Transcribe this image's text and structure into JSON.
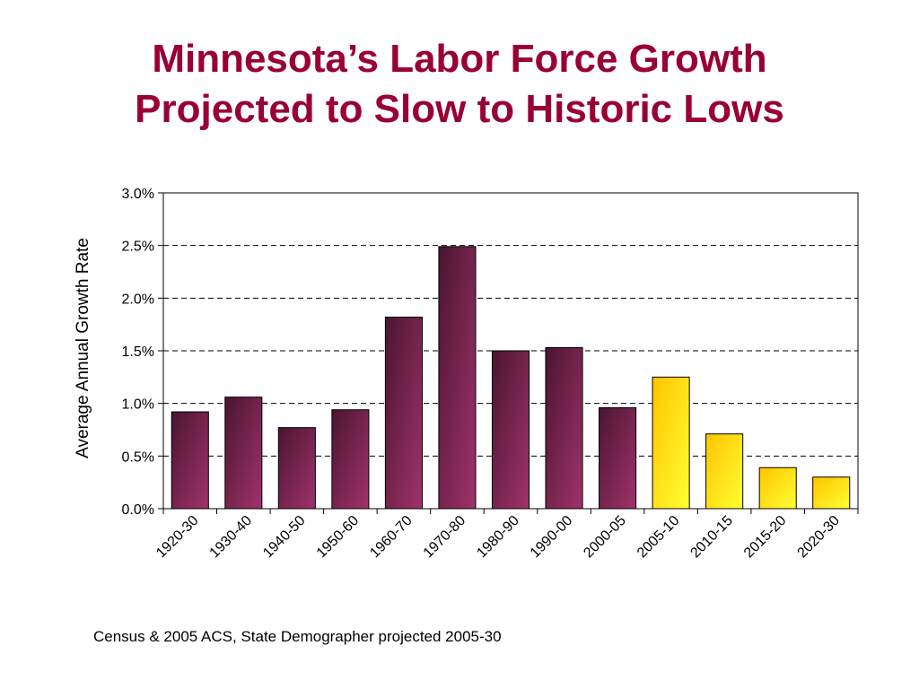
{
  "slide": {
    "title_lines": [
      "Minnesota’s Labor Force Growth",
      "Projected to Slow to Historic Lows"
    ],
    "source_note": "Census & 2005 ACS, State Demographer projected 2005-30"
  },
  "colors": {
    "title": "#990033",
    "historic_bar_dark": "#4a1530",
    "historic_bar_light": "#a0336a",
    "projected_bar_dark": "#ffc400",
    "projected_bar_light": "#ffff33",
    "grid": "#000000"
  },
  "chart_data": {
    "type": "bar",
    "title": "",
    "xlabel": "",
    "ylabel": "Average Annual Growth Rate",
    "ylim": [
      0,
      3.0
    ],
    "yticks": [
      0,
      0.5,
      1.0,
      1.5,
      2.0,
      2.5,
      3.0
    ],
    "ytick_labels": [
      "0.0%",
      "0.5%",
      "1.0%",
      "1.5%",
      "2.0%",
      "2.5%",
      "3.0%"
    ],
    "grid": "horizontal dashed",
    "legend": "none",
    "categories": [
      "1920-30",
      "1930-40",
      "1940-50",
      "1950-60",
      "1960-70",
      "1970-80",
      "1980-90",
      "1990-00",
      "2000-05",
      "2005-10",
      "2010-15",
      "2015-20",
      "2020-30"
    ],
    "values": [
      0.92,
      1.06,
      0.77,
      0.94,
      1.82,
      2.49,
      1.5,
      1.53,
      0.96,
      1.25,
      0.71,
      0.39,
      0.3
    ],
    "projected": [
      false,
      false,
      false,
      false,
      false,
      false,
      false,
      false,
      false,
      true,
      true,
      true,
      true
    ]
  }
}
